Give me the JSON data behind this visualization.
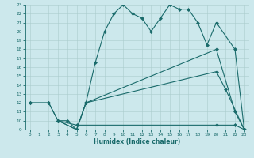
{
  "xlabel": "Humidex (Indice chaleur)",
  "bg_color": "#cce8ec",
  "line_color": "#1a6b6b",
  "grid_color": "#aacccc",
  "xlim": [
    -0.5,
    23.5
  ],
  "ylim": [
    9,
    23
  ],
  "xticks": [
    0,
    1,
    2,
    3,
    4,
    5,
    6,
    7,
    8,
    9,
    10,
    11,
    12,
    13,
    14,
    15,
    16,
    17,
    18,
    19,
    20,
    21,
    22,
    23
  ],
  "yticks": [
    9,
    10,
    11,
    12,
    13,
    14,
    15,
    16,
    17,
    18,
    19,
    20,
    21,
    22,
    23
  ],
  "line1_x": [
    0,
    2,
    3,
    4,
    5,
    6,
    7,
    8,
    9,
    10,
    11,
    12,
    13,
    14,
    15,
    16,
    17,
    18,
    19,
    20,
    22,
    23
  ],
  "line1_y": [
    12,
    12,
    10,
    10,
    9,
    12,
    16.5,
    20,
    22,
    23,
    22,
    21.5,
    20,
    21.5,
    23,
    22.5,
    22.5,
    21,
    18.5,
    21,
    18,
    9
  ],
  "line2_x": [
    0,
    2,
    3,
    5,
    6,
    20,
    22,
    23
  ],
  "line2_y": [
    12,
    12,
    10,
    9,
    12,
    18,
    11,
    9
  ],
  "line3_x": [
    3,
    5,
    6,
    20,
    21,
    23
  ],
  "line3_y": [
    10,
    9,
    12,
    15.5,
    13.5,
    9
  ],
  "line4_x": [
    3,
    5,
    20,
    22,
    23
  ],
  "line4_y": [
    10,
    9.5,
    9.5,
    9.5,
    9
  ]
}
